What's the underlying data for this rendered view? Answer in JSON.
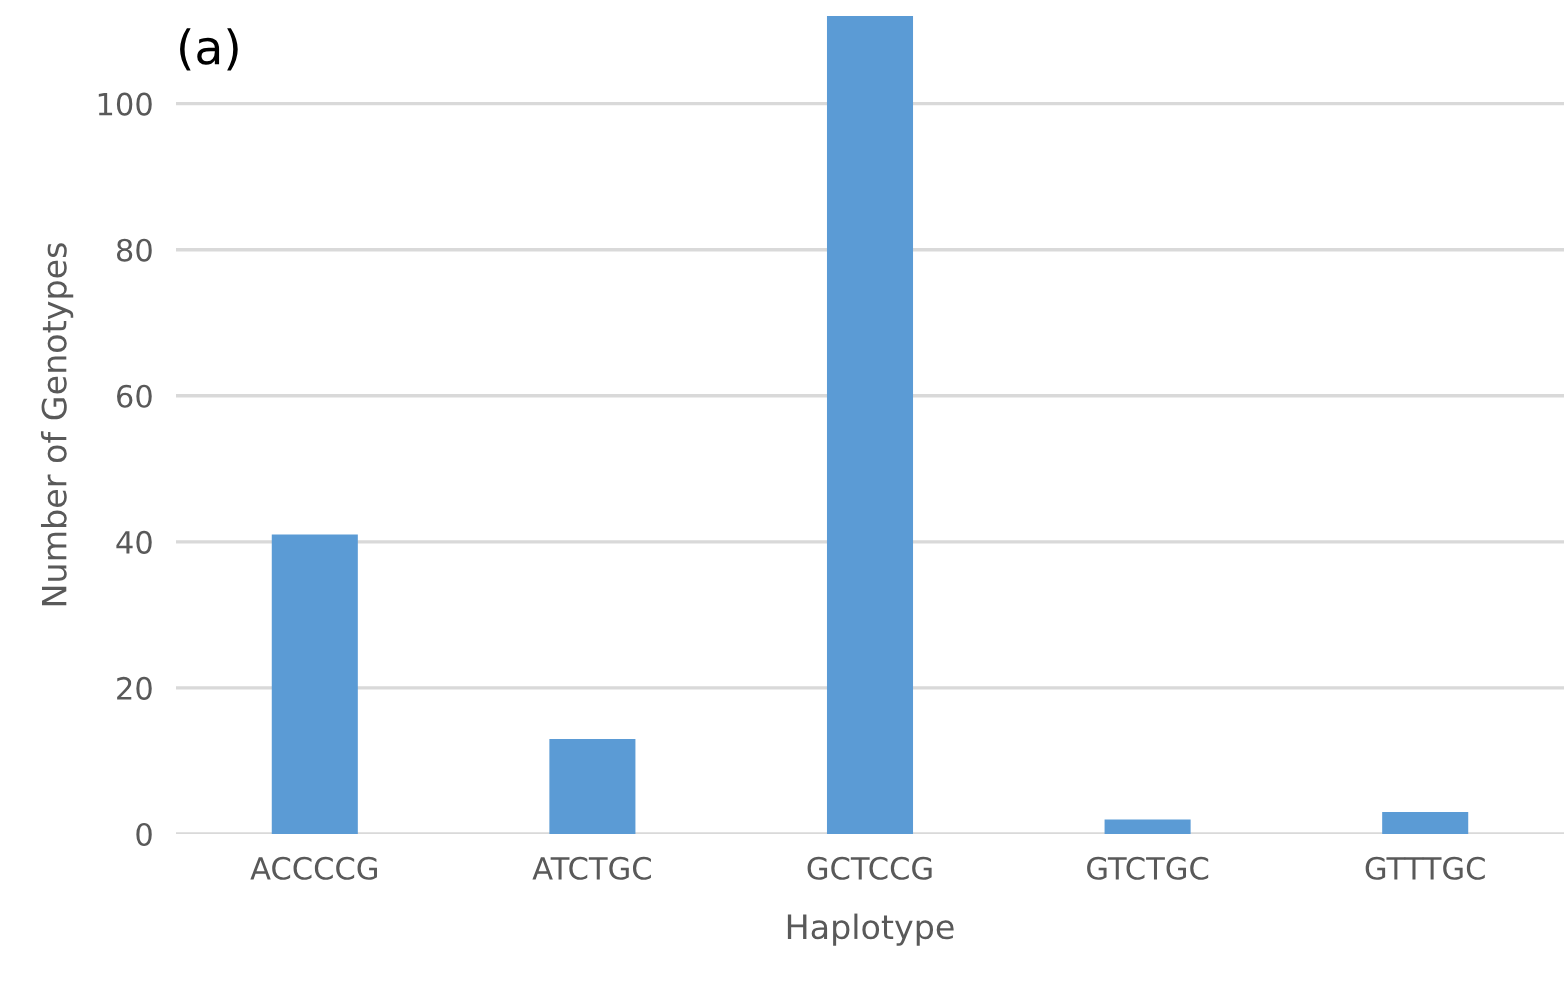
{
  "chart_data": {
    "type": "bar",
    "title": "(a)",
    "xlabel": "Haplotype",
    "ylabel": "Number of Genotypes",
    "categories": [
      "ACCCCG",
      "ATCTGC",
      "GCTCCG",
      "GTCTGC",
      "GTTTGC"
    ],
    "values": [
      41,
      13,
      112,
      2,
      3
    ],
    "color": "#5b9bd5",
    "ylim": [
      0,
      112
    ],
    "yticks": [
      0,
      20,
      40,
      60,
      80,
      100
    ],
    "grid": "y",
    "legend": false
  }
}
